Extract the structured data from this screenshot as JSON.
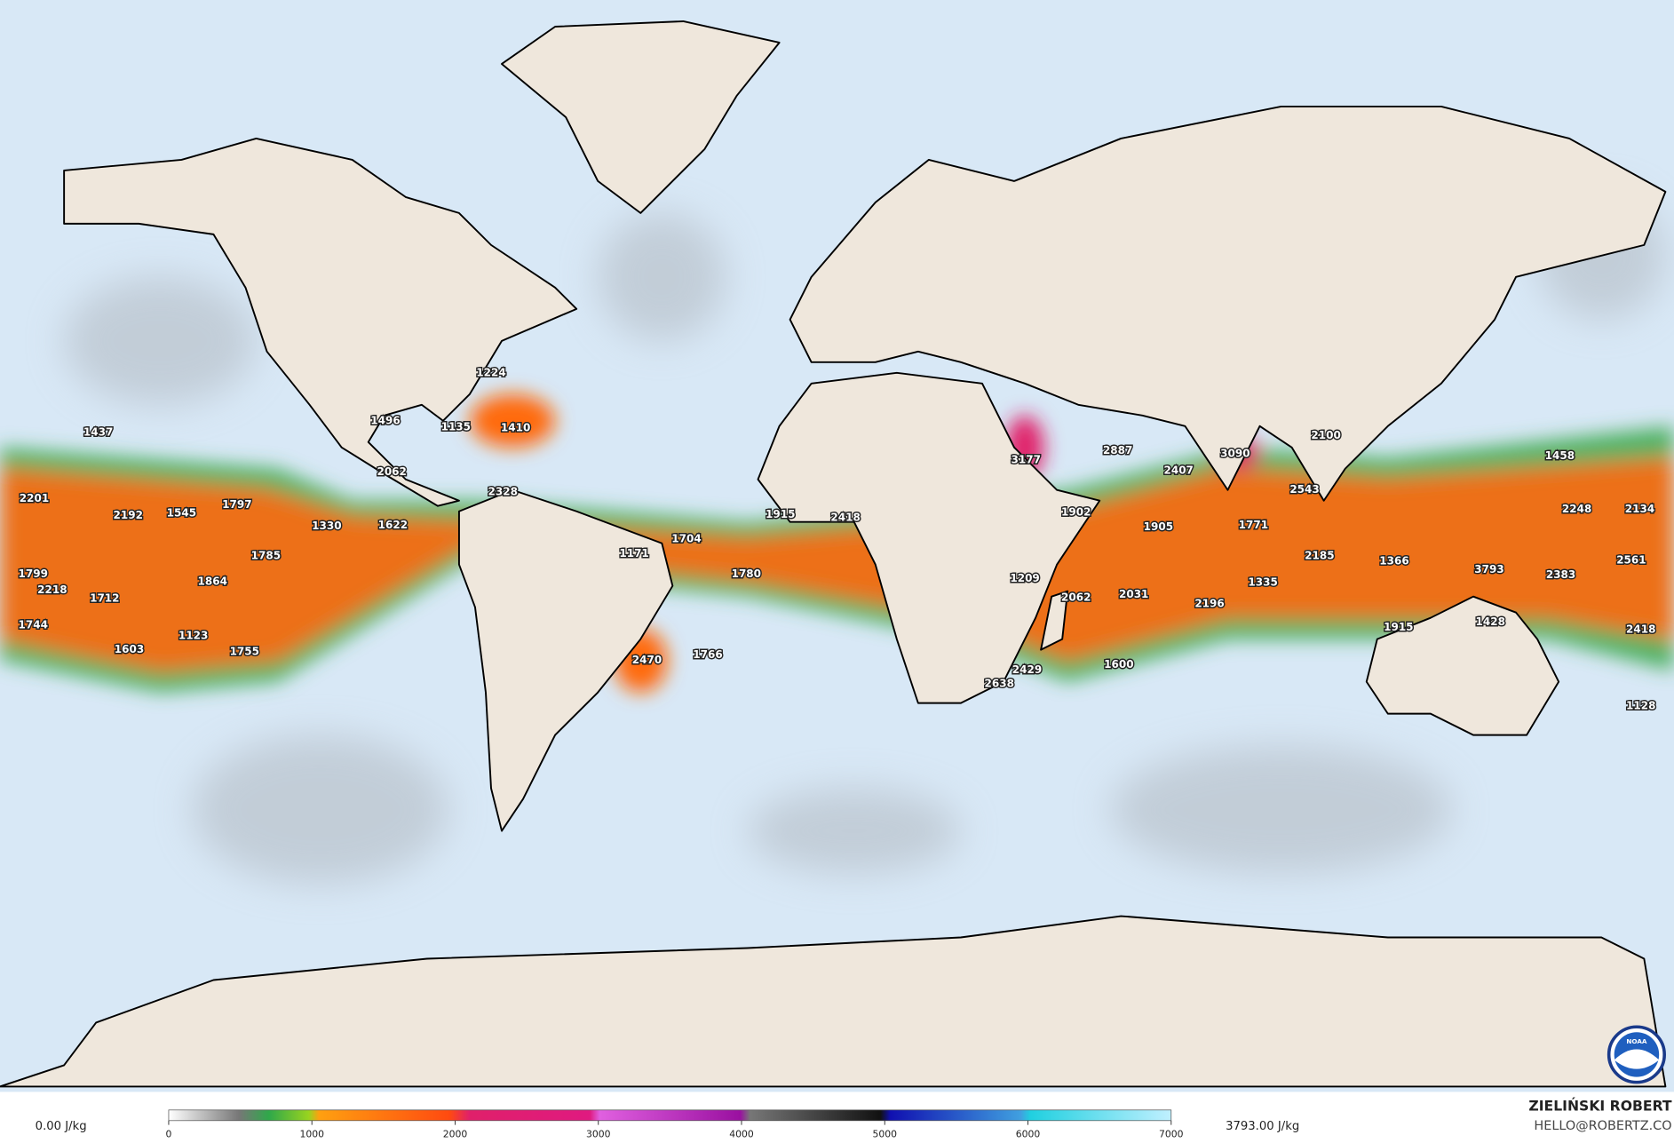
{
  "map": {
    "labels": [
      1224,
      1496,
      1135,
      1410,
      1437,
      2062,
      2328,
      2201,
      2192,
      1545,
      1797,
      1330,
      1622,
      1785,
      1799,
      2218,
      1712,
      1864,
      1744,
      1603,
      1123,
      1755,
      1171,
      1704,
      1780,
      1915,
      2418,
      2470,
      1766,
      3177,
      2887,
      2407,
      3090,
      2100,
      2543,
      1458,
      1902,
      1905,
      1771,
      2248,
      2134,
      2561,
      2185,
      1366,
      3793,
      2383,
      1209,
      2062,
      2031,
      2196,
      1335,
      1428,
      1915,
      2418,
      2638,
      2429,
      1600,
      1128
    ]
  },
  "colorbar": {
    "min_label": "0.00 J/kg",
    "max_label": "3793.00 J/kg",
    "lim": [
      0,
      7000
    ],
    "ticks": [
      0,
      1000,
      2000,
      3000,
      4000,
      5000,
      6000,
      7000
    ]
  },
  "credit": {
    "name": "ZIELIŃSKI ROBERT",
    "email": "HELLO@ROBERTZ.CO",
    "logo": "NOAA"
  }
}
